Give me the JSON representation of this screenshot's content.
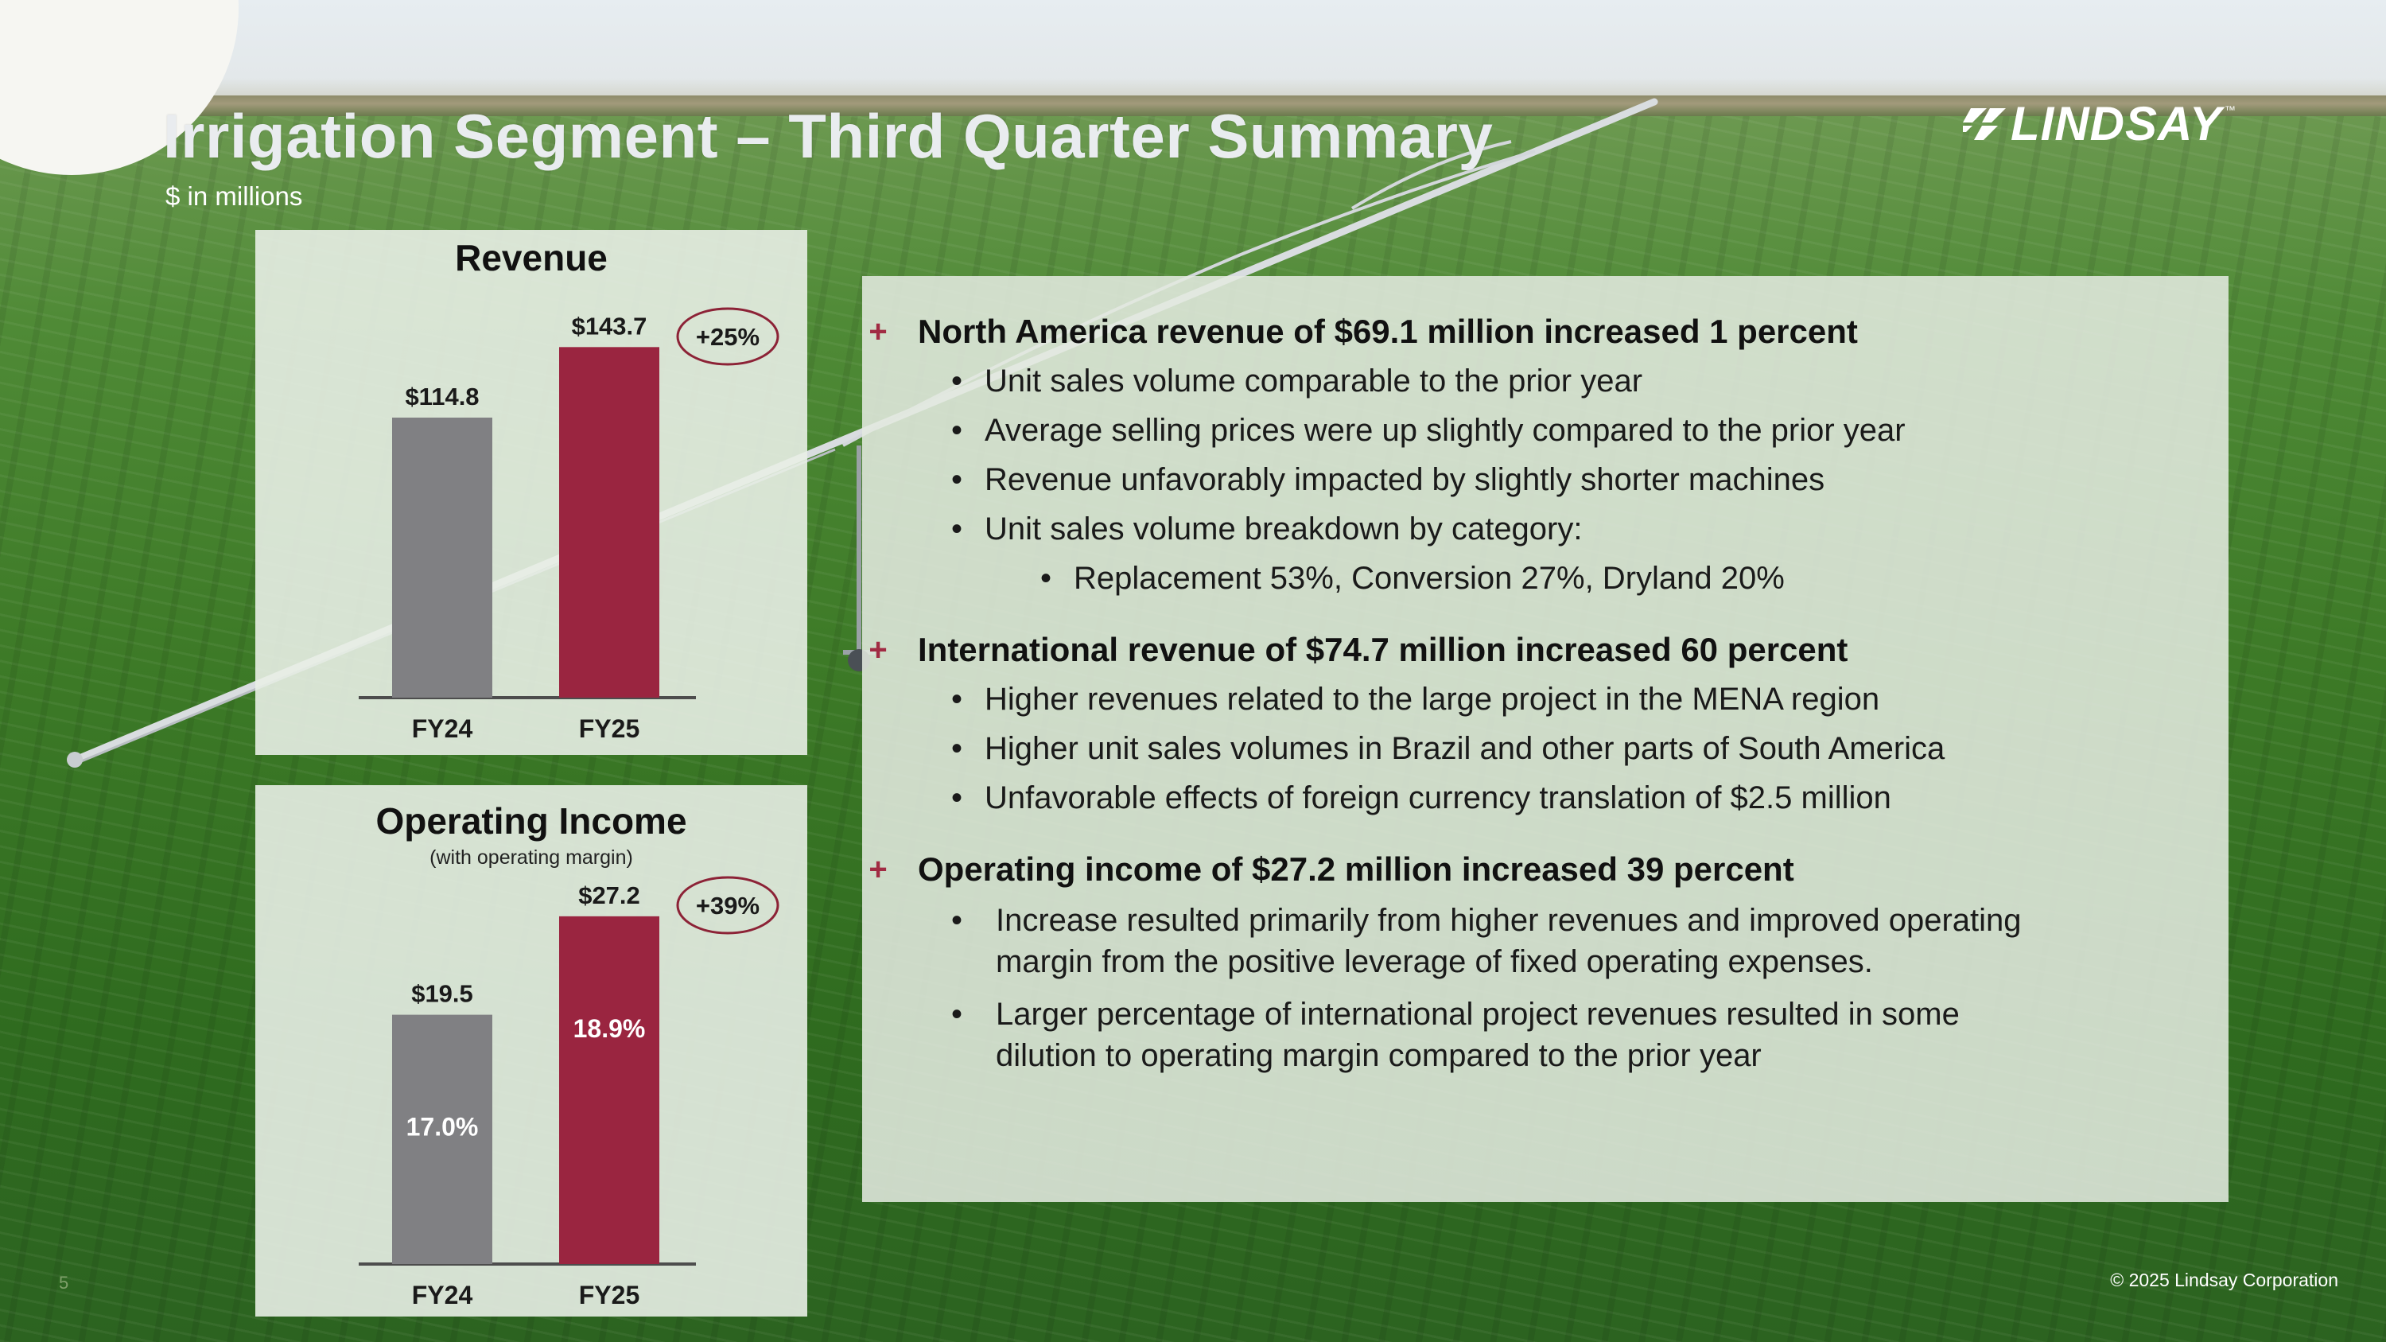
{
  "header": {
    "title": "Irrigation Segment – Third Quarter Summary",
    "subtitle": "$ in millions",
    "logo_text": "LINDSAY",
    "logo_tm": "™"
  },
  "colors": {
    "fy24_bar": "#808083",
    "fy25_bar": "#9a2540",
    "badge_border": "#8c2236",
    "plus": "#a12b43"
  },
  "chart_data": [
    {
      "type": "bar",
      "title": "Revenue",
      "categories": [
        "FY24",
        "FY25"
      ],
      "values": [
        114.8,
        143.7
      ],
      "value_labels": [
        "$114.8",
        "$143.7"
      ],
      "change_badge": "+25%",
      "ylim": [
        0,
        150
      ],
      "xlabel": "",
      "ylabel": ""
    },
    {
      "type": "bar",
      "title": "Operating Income",
      "subtitle": "(with operating margin)",
      "categories": [
        "FY24",
        "FY25"
      ],
      "values": [
        19.5,
        27.2
      ],
      "value_labels": [
        "$19.5",
        "$27.2"
      ],
      "inner_labels": [
        "17.0%",
        "18.9%"
      ],
      "change_badge": "+39%",
      "ylim": [
        0,
        28
      ],
      "xlabel": "",
      "ylabel": ""
    }
  ],
  "summary": {
    "plus_glyph": "+",
    "bullet_glyph": "•",
    "north_america": {
      "heading": "North America revenue of $69.1 million increased 1 percent",
      "bullets": [
        "Unit sales volume comparable to the prior year",
        "Average selling prices were up slightly compared to the prior year",
        "Revenue unfavorably impacted by slightly shorter machines",
        "Unit sales volume breakdown by category:"
      ],
      "sub_bullet": "Replacement 53%, Conversion 27%, Dryland 20%"
    },
    "international": {
      "heading": "International revenue of $74.7 million increased 60 percent",
      "bullets": [
        "Higher revenues related to the large project in the MENA region",
        "Higher unit sales volumes in Brazil and other parts of South America",
        "Unfavorable effects of foreign currency translation of $2.5 million"
      ]
    },
    "operating_income": {
      "heading": "Operating income of $27.2 million increased 39 percent",
      "bullet1_line1": "Increase resulted primarily from higher revenues and improved operating",
      "bullet1_line2": "margin from the positive leverage of fixed operating expenses.",
      "bullet2_line1": "Larger percentage of international project revenues resulted in some",
      "bullet2_line2": "dilution to operating margin compared to the prior year"
    }
  },
  "footer": {
    "page_number": "5",
    "copyright": "© 2025 Lindsay Corporation"
  }
}
